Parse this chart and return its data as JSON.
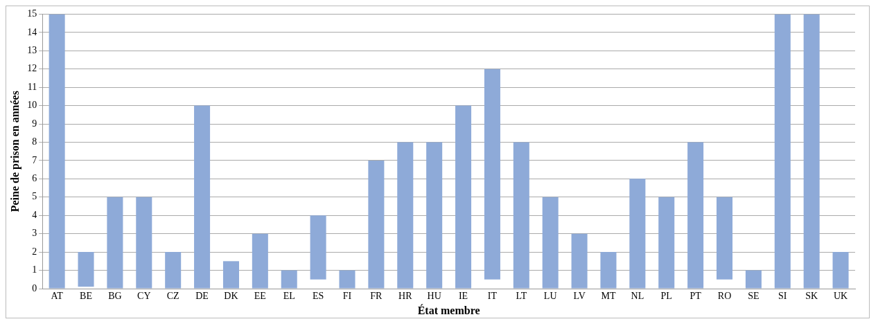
{
  "chart_data": {
    "type": "bar",
    "xlabel": "État membre",
    "ylabel": "Peine de prison en années",
    "categories": [
      "AT",
      "BE",
      "BG",
      "CY",
      "CZ",
      "DE",
      "DK",
      "EE",
      "EL",
      "ES",
      "FI",
      "FR",
      "HR",
      "HU",
      "IE",
      "IT",
      "LT",
      "LU",
      "LV",
      "MT",
      "NL",
      "PL",
      "PT",
      "RO",
      "SE",
      "SI",
      "SK",
      "UK"
    ],
    "base": [
      0,
      0.1,
      0,
      0,
      0,
      0,
      0,
      0,
      0,
      0.5,
      0,
      0,
      0,
      0,
      0,
      0.5,
      0,
      0,
      0,
      0,
      0,
      0,
      0,
      0.5,
      0,
      0,
      0,
      0
    ],
    "values": [
      15,
      1.9,
      5,
      5,
      2,
      10,
      1.5,
      3,
      1,
      3.5,
      1,
      7,
      8,
      8,
      10,
      11.5,
      8,
      5,
      3,
      2,
      6,
      5,
      8,
      4.5,
      1,
      15,
      15,
      2
    ],
    "color": "#8eaad8",
    "ylim": [
      0,
      15
    ],
    "yticks": [
      0,
      1,
      2,
      3,
      4,
      5,
      6,
      7,
      8,
      9,
      10,
      11,
      12,
      13,
      14,
      15
    ],
    "grid": "y"
  }
}
